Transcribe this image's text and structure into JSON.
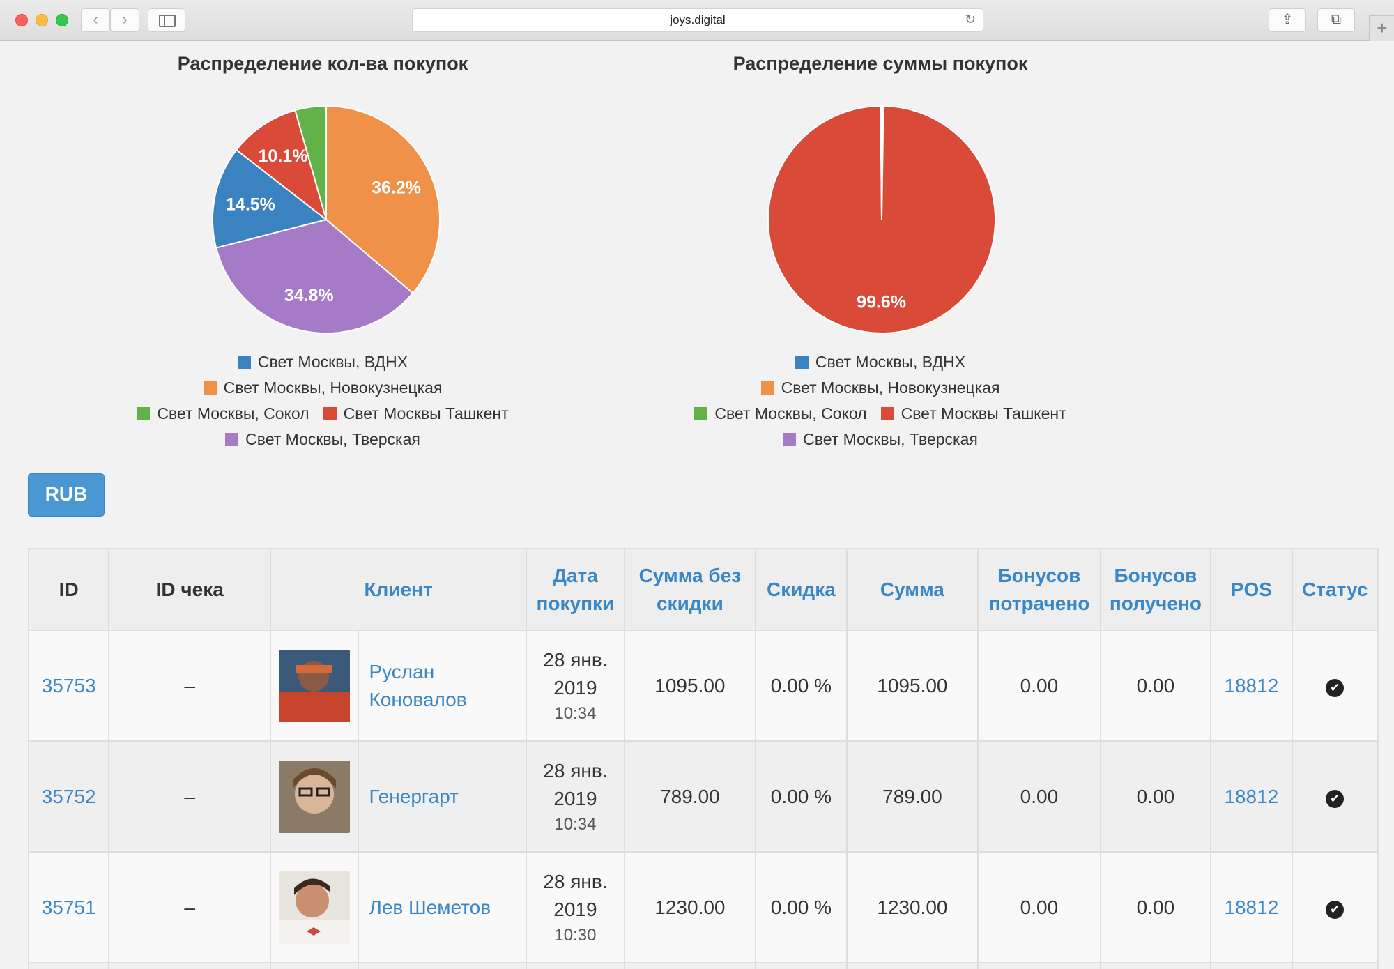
{
  "browser": {
    "url": "joys.digital",
    "back_glyph": "‹",
    "forward_glyph": "›",
    "share_glyph": "⇪",
    "tabs_glyph": "⧉",
    "new_tab_glyph": "+",
    "reload_glyph": "↻"
  },
  "charts": {
    "left_title": "Распределение кол-ва покупок",
    "right_title": "Распределение суммы покупок",
    "legend": [
      {
        "label": "Свет Москвы, ВДНХ",
        "color": "#3a82c0"
      },
      {
        "label": "Свет Москвы, Новокузнецкая",
        "color": "#f0914a"
      },
      {
        "label": "Свет Москвы, Сокол",
        "color": "#62b24a"
      },
      {
        "label": "Свет Москвы Ташкент",
        "color": "#da4a38"
      },
      {
        "label": "Свет Москвы, Тверская",
        "color": "#a57ac6"
      }
    ]
  },
  "chart_data": [
    {
      "type": "pie",
      "title": "Распределение кол-ва покупок",
      "slices": [
        {
          "name": "Свет Москвы, ВДНХ",
          "value": 14.5,
          "label": "14.5%"
        },
        {
          "name": "Свет Москвы, Новокузнецкая",
          "value": 36.2,
          "label": "36.2%"
        },
        {
          "name": "Свет Москвы, Сокол",
          "value": 4.4,
          "label": ""
        },
        {
          "name": "Свет Москвы Ташкент",
          "value": 10.1,
          "label": "10.1%"
        },
        {
          "name": "Свет Москвы, Тверская",
          "value": 34.8,
          "label": "34.8%"
        }
      ],
      "order": [
        "Свет Москвы, Новокузнецкая",
        "Свет Москвы, Тверская",
        "Свет Москвы, ВДНХ",
        "Свет Москвы Ташкент",
        "Свет Москвы, Сокол"
      ],
      "legend": "bottom"
    },
    {
      "type": "pie",
      "title": "Распределение суммы покупок",
      "slices": [
        {
          "name": "Свет Москвы, ВДНХ",
          "value": 0.1,
          "label": ""
        },
        {
          "name": "Свет Москвы, Новокузнецкая",
          "value": 0.2,
          "label": ""
        },
        {
          "name": "Свет Москвы, Сокол",
          "value": 0.05,
          "label": ""
        },
        {
          "name": "Свет Москвы Ташкент",
          "value": 99.6,
          "label": "99.6%"
        },
        {
          "name": "Свет Москвы, Тверская",
          "value": 0.05,
          "label": ""
        }
      ],
      "order": [
        "Свет Москвы, Новокузнецкая",
        "Свет Москвы, Тверская",
        "Свет Москвы Ташкент",
        "Свет Москвы, ВДНХ",
        "Свет Москвы, Сокол"
      ],
      "legend": "bottom"
    }
  ],
  "currency_button": "RUB",
  "table": {
    "headers": {
      "id": "ID",
      "receipt": "ID чека",
      "client": "Клиент",
      "date_l1": "Дата",
      "date_l2": "покупки",
      "sum_nodisc_l1": "Сумма без",
      "sum_nodisc_l2": "скидки",
      "discount": "Скидка",
      "sum": "Сумма",
      "spent_l1": "Бонусов",
      "spent_l2": "потрачено",
      "got_l1": "Бонусов",
      "got_l2": "получено",
      "pos": "POS",
      "status": "Статус"
    },
    "rows": [
      {
        "id": "35753",
        "receipt": "–",
        "client_l1": "Руслан",
        "client_l2": "Коновалов",
        "date_l1": "28 янв.",
        "date_l2": "2019",
        "time": "10:34",
        "sum_nodisc": "1095.00",
        "discount": "0.00 %",
        "sum": "1095.00",
        "spent": "0.00",
        "got": "0.00",
        "pos": "18812",
        "status": "✔"
      },
      {
        "id": "35752",
        "receipt": "–",
        "client_l1": "Генергарт",
        "client_l2": "",
        "date_l1": "28 янв.",
        "date_l2": "2019",
        "time": "10:34",
        "sum_nodisc": "789.00",
        "discount": "0.00 %",
        "sum": "789.00",
        "spent": "0.00",
        "got": "0.00",
        "pos": "18812",
        "status": "✔"
      },
      {
        "id": "35751",
        "receipt": "–",
        "client_l1": "Лев Шеметов",
        "client_l2": "",
        "date_l1": "28 янв.",
        "date_l2": "2019",
        "time": "10:30",
        "sum_nodisc": "1230.00",
        "discount": "0.00 %",
        "sum": "1230.00",
        "spent": "0.00",
        "got": "0.00",
        "pos": "18812",
        "status": "✔"
      }
    ]
  }
}
